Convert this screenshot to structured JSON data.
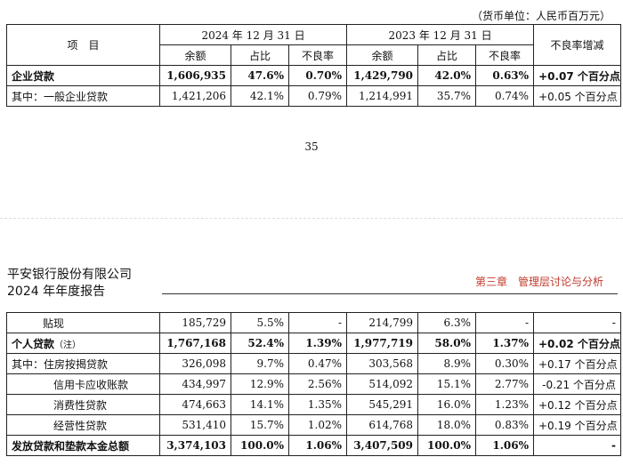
{
  "unit_note": "（货币单位：人民币百万元）",
  "top_table": {
    "header": {
      "item": "项　目",
      "period_2024": "2024 年 12 月 31 日",
      "period_2023": "2023 年 12 月 31 日",
      "npl_change": "不良率增减",
      "sub_balance": "余额",
      "sub_share": "占比",
      "sub_npl": "不良率"
    },
    "rows": [
      {
        "label": "企业贷款",
        "b24": "1,606,935",
        "s24": "47.6%",
        "n24": "0.70%",
        "b23": "1,429,790",
        "s23": "42.0%",
        "n23": "0.63%",
        "chg": "+0.07 个百分点"
      },
      {
        "label": "其中：一般企业贷款",
        "b24": "1,421,206",
        "s24": "42.1%",
        "n24": "0.79%",
        "b23": "1,214,991",
        "s23": "35.7%",
        "n23": "0.74%",
        "chg": "+0.05 个百分点"
      }
    ]
  },
  "page_number": "35",
  "company": {
    "line1": "平安银行股份有限公司",
    "line2": "2024 年年度报告"
  },
  "chapter": "第三章　管理层讨论与分析",
  "bottom_table": {
    "rows": [
      {
        "label": "贴现",
        "b24": "185,729",
        "s24": "5.5%",
        "n24": "-",
        "b23": "214,799",
        "s23": "6.3%",
        "n23": "-",
        "chg": "-"
      },
      {
        "label": "个人贷款",
        "note": "（注）",
        "b24": "1,767,168",
        "s24": "52.4%",
        "n24": "1.39%",
        "b23": "1,977,719",
        "s23": "58.0%",
        "n23": "1.37%",
        "chg": "+0.02 个百分点"
      },
      {
        "label": "其中：住房按揭贷款",
        "b24": "326,098",
        "s24": "9.7%",
        "n24": "0.47%",
        "b23": "303,568",
        "s23": "8.9%",
        "n23": "0.30%",
        "chg": "+0.17 个百分点"
      },
      {
        "label": "信用卡应收账款",
        "b24": "434,997",
        "s24": "12.9%",
        "n24": "2.56%",
        "b23": "514,092",
        "s23": "15.1%",
        "n23": "2.77%",
        "chg": "-0.21 个百分点"
      },
      {
        "label": "消费性贷款",
        "b24": "474,663",
        "s24": "14.1%",
        "n24": "1.35%",
        "b23": "545,291",
        "s23": "16.0%",
        "n23": "1.23%",
        "chg": "+0.12 个百分点"
      },
      {
        "label": "经营性贷款",
        "b24": "531,410",
        "s24": "15.7%",
        "n24": "1.02%",
        "b23": "614,768",
        "s23": "18.0%",
        "n23": "0.83%",
        "chg": "+0.19 个百分点"
      },
      {
        "label": "发放贷款和垫款本金总额",
        "b24": "3,374,103",
        "s24": "100.0%",
        "n24": "1.06%",
        "b23": "3,407,509",
        "s23": "100.0%",
        "n23": "1.06%",
        "chg": "-"
      }
    ]
  }
}
